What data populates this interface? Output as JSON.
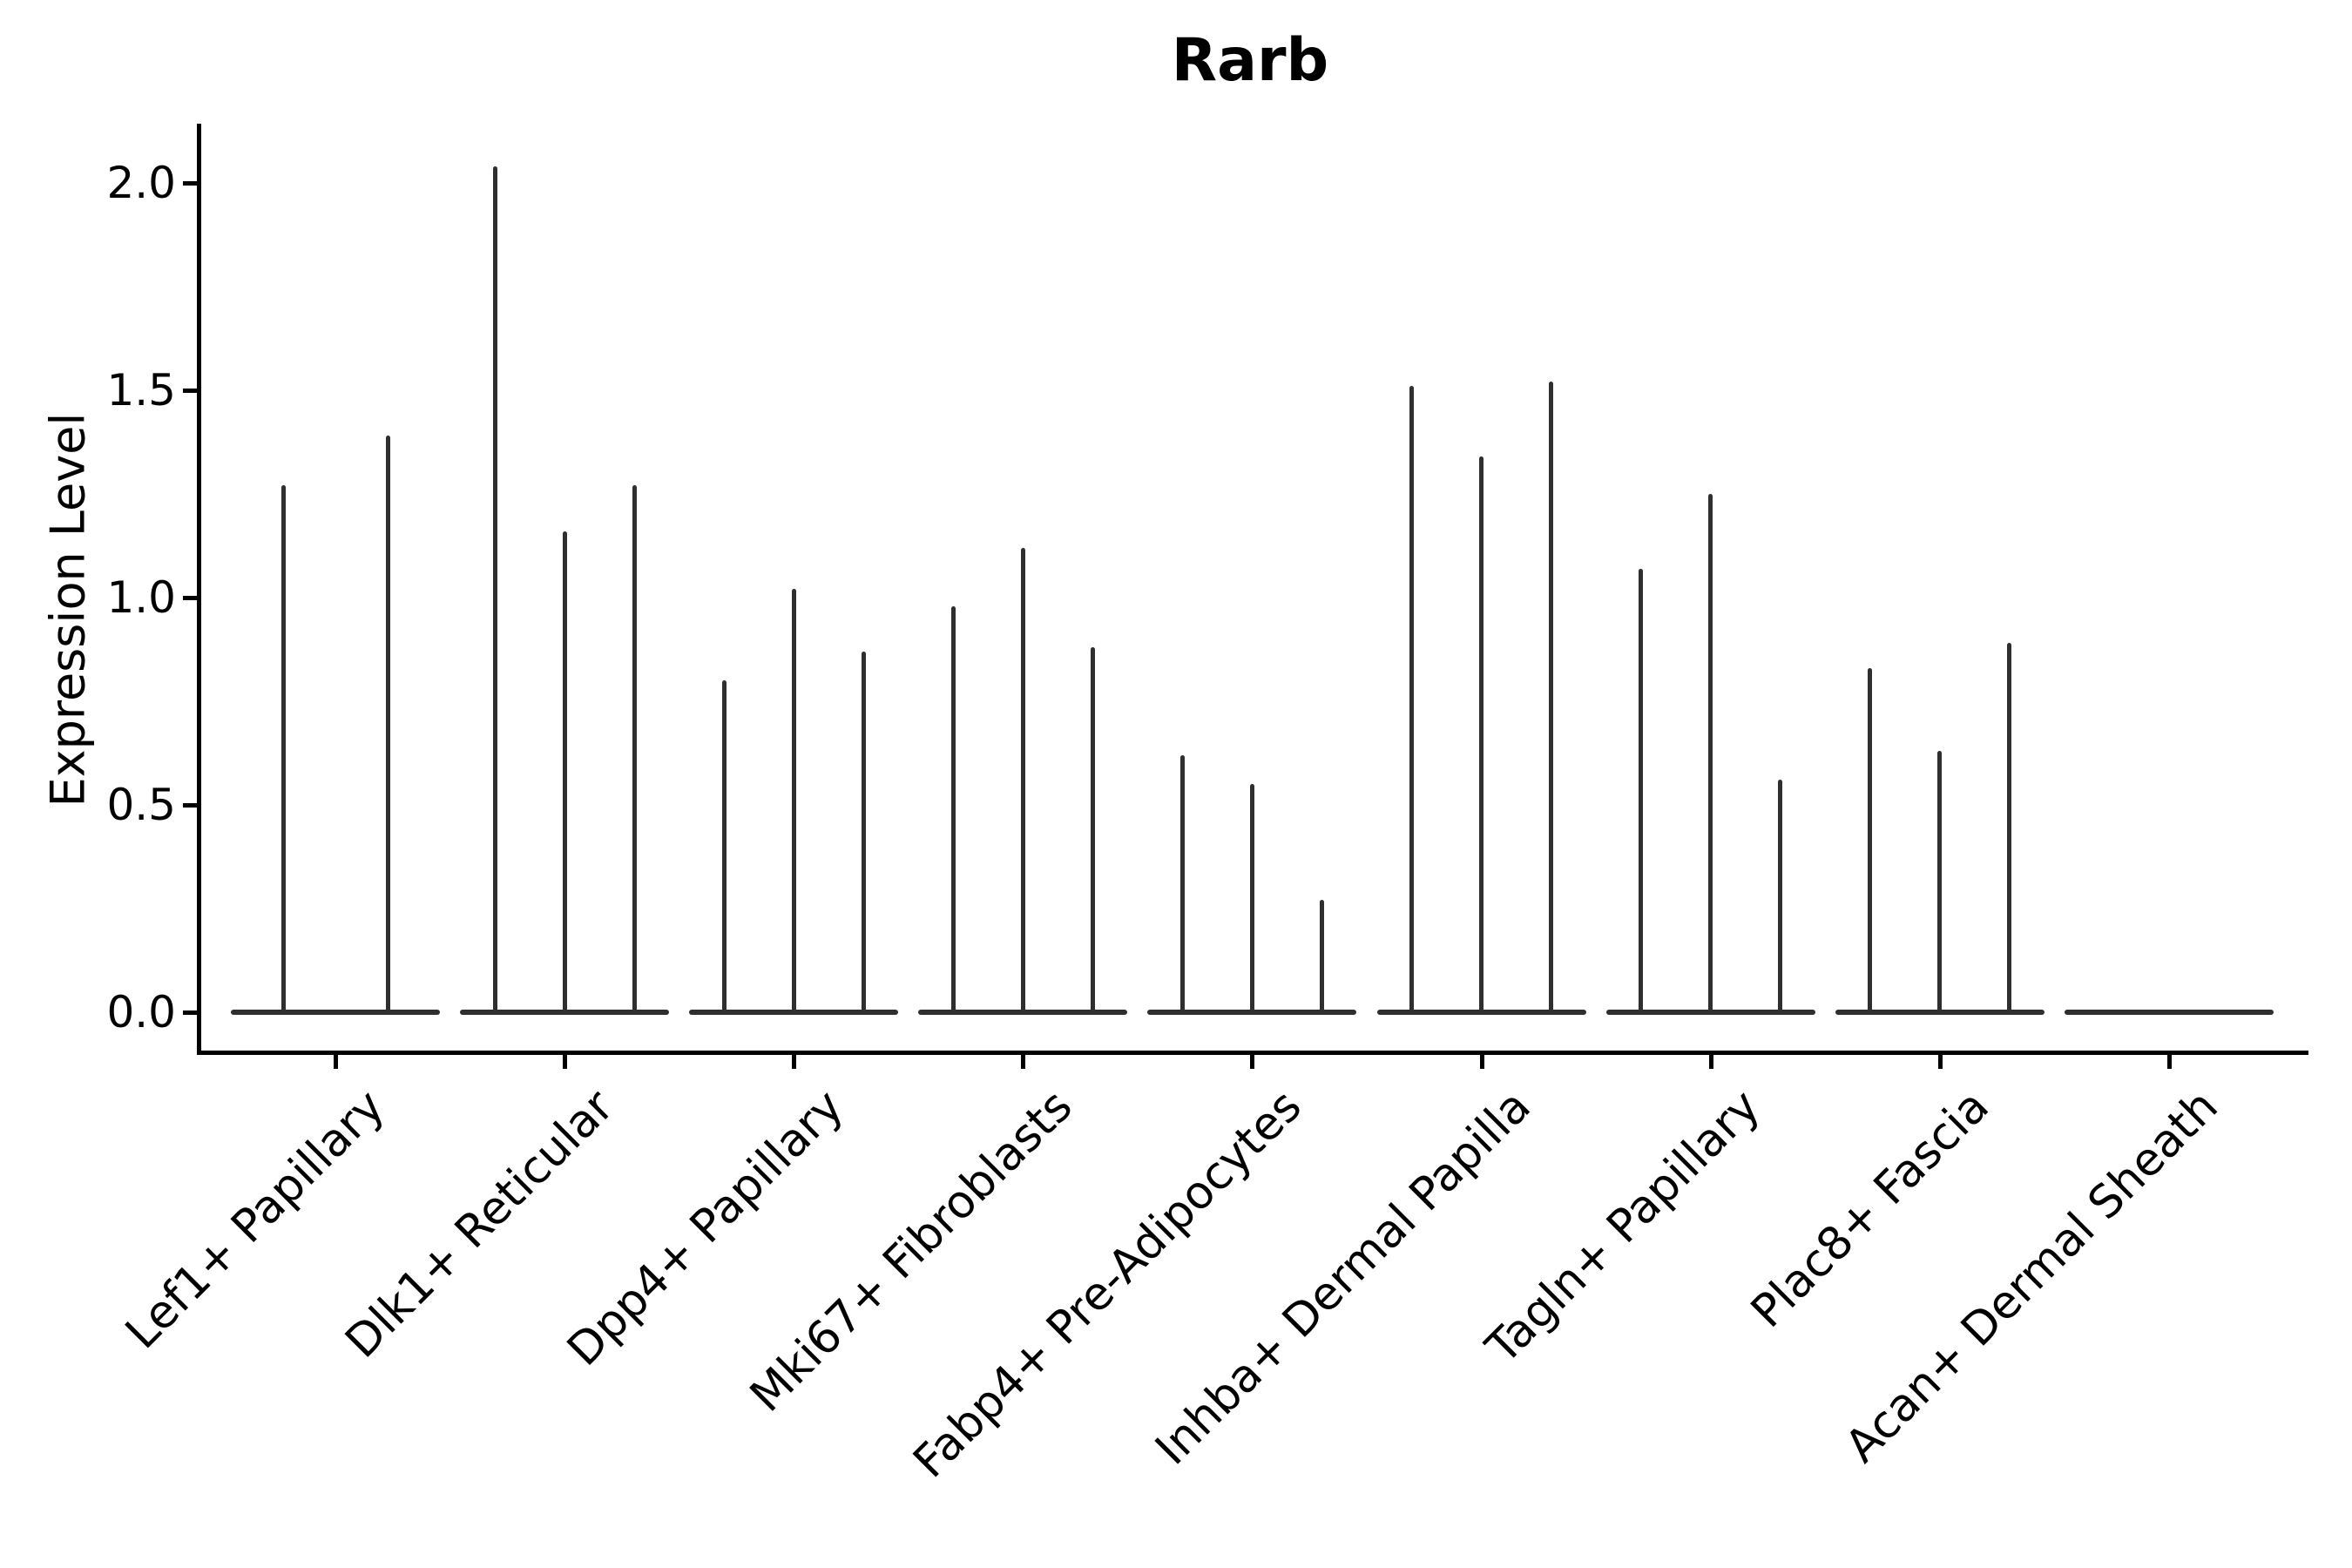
{
  "figure": {
    "background": "#ffffff"
  },
  "colors": {
    "violin": "#2f2f2f",
    "axis": "#000000",
    "text": "#000000"
  },
  "chart_data": {
    "type": "violin",
    "title": "Rarb",
    "xlabel": "",
    "ylabel": "Expression Level",
    "ylim": [
      -0.1,
      2.15
    ],
    "yticks": [
      2.0,
      1.5,
      1.0,
      0.5,
      0.0
    ],
    "ytick_labels": [
      "2.0",
      "1.5",
      "1.0",
      "0.5",
      "0.0"
    ],
    "grid": false,
    "legend_position": "none",
    "description": "Violin plot of Rarb expression level per cell type; each category contains narrow spike-shaped violins (most cells at 0) whose maxima are listed in spike_maxima. Lef1+ Papillary shows 2 violins, Acan+ Dermal Sheath shows only a flat base at 0.",
    "categories": [
      {
        "label": "Lef1+ Papillary",
        "spike_maxima": [
          1.27,
          1.39
        ]
      },
      {
        "label": "Dlk1+ Reticular",
        "spike_maxima": [
          2.04,
          1.16,
          1.27
        ]
      },
      {
        "label": "Dpp4+ Papillary",
        "spike_maxima": [
          0.8,
          1.02,
          0.87
        ]
      },
      {
        "label": "Mki67+ Fibroblasts",
        "spike_maxima": [
          0.98,
          1.12,
          0.88
        ]
      },
      {
        "label": "Fabp4+ Pre-Adipocytes",
        "spike_maxima": [
          0.62,
          0.55,
          0.27
        ]
      },
      {
        "label": "Inhba+ Dermal Papilla",
        "spike_maxima": [
          1.51,
          1.34,
          1.52
        ]
      },
      {
        "label": "Tagln+ Papillary",
        "spike_maxima": [
          1.07,
          1.25,
          0.56
        ]
      },
      {
        "label": "Plac8+ Fascia",
        "spike_maxima": [
          0.83,
          0.63,
          0.89
        ]
      },
      {
        "label": "Acan+ Dermal Sheath",
        "spike_maxima": []
      }
    ]
  }
}
